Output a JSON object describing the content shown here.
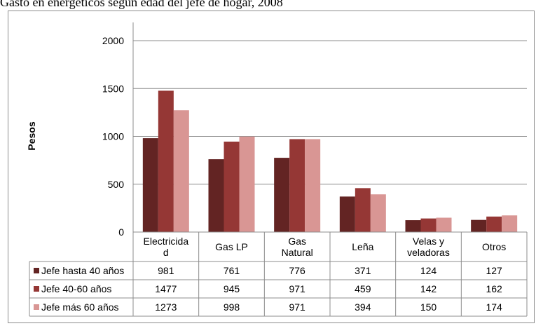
{
  "caption": "Gasto en energéticos según edad del jefe de hogar, 2008",
  "chart_data": {
    "type": "bar",
    "ylabel": "Pesos",
    "ylim": [
      0,
      2000
    ],
    "yticks": [
      0,
      500,
      1000,
      1500,
      2000
    ],
    "grid": true,
    "legend_placement": "data-table",
    "categories": [
      [
        "Electricida",
        "d"
      ],
      [
        "Gas LP"
      ],
      [
        "Gas",
        "Natural"
      ],
      [
        "Leña"
      ],
      [
        "Velas y",
        "veladoras"
      ],
      [
        "Otros"
      ]
    ],
    "series": [
      {
        "name": "Jefe hasta 40 años",
        "color": "#632423",
        "values": [
          981,
          761,
          776,
          371,
          124,
          127
        ]
      },
      {
        "name": "Jefe 40-60 años",
        "color": "#953735",
        "values": [
          1477,
          945,
          971,
          459,
          142,
          162
        ]
      },
      {
        "name": "Jefe más 60 años",
        "color": "#d99694",
        "values": [
          1273,
          998,
          971,
          394,
          150,
          174
        ]
      }
    ]
  }
}
